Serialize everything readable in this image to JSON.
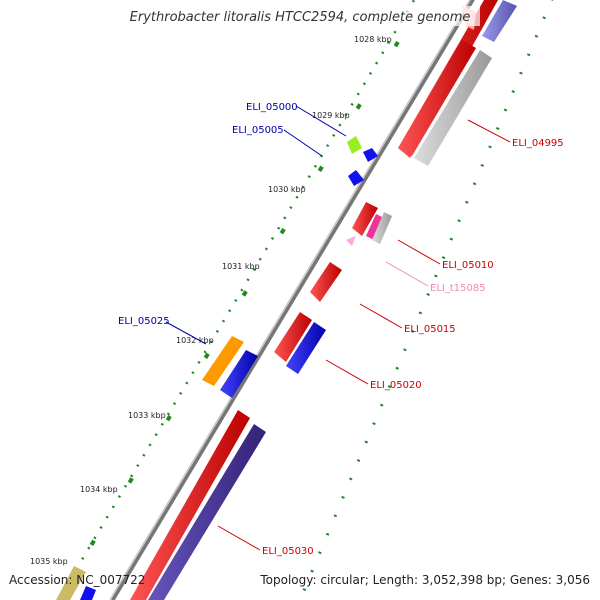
{
  "title": "Erythrobacter litoralis HTCC2594, complete genome",
  "footer": {
    "accession": "Accession: NC_007722",
    "topology": "Topology: circular; Length: 3,052,398 bp; Genes: 3,056"
  },
  "ticks": [
    {
      "label": "1028 kbp"
    },
    {
      "label": "1029 kbp"
    },
    {
      "label": "1030 kbp"
    },
    {
      "label": "1031 kbp"
    },
    {
      "label": "1032 kbp"
    },
    {
      "label": "1033 kbp"
    },
    {
      "label": "1034 kbp"
    },
    {
      "label": "1035 kbp"
    }
  ],
  "gene_labels": [
    {
      "name": "ELI_04995",
      "color": "#cc0000"
    },
    {
      "name": "ELI_05000",
      "color": "#0000aa"
    },
    {
      "name": "ELI_05005",
      "color": "#0000aa"
    },
    {
      "name": "ELI_05010",
      "color": "#cc0000"
    },
    {
      "name": "ELI_t15085",
      "color": "#ee88bb"
    },
    {
      "name": "ELI_05015",
      "color": "#cc0000"
    },
    {
      "name": "ELI_05020",
      "color": "#cc0000"
    },
    {
      "name": "ELI_05025",
      "color": "#0000aa"
    },
    {
      "name": "ELI_05030",
      "color": "#cc0000"
    }
  ],
  "colors": {
    "forward_cds": "#ee1111",
    "reverse_cds": "#1111ee",
    "pseudo_cds": "#bbbbbb",
    "trna": "#ee3399",
    "misc_green": "#99ee22",
    "misc_orange": "#ff9900",
    "forward_strand_bar": "#ee1111",
    "reverse_strand_bar": "#443399",
    "backbone": "#888888",
    "dotted_axis": "#228822"
  }
}
